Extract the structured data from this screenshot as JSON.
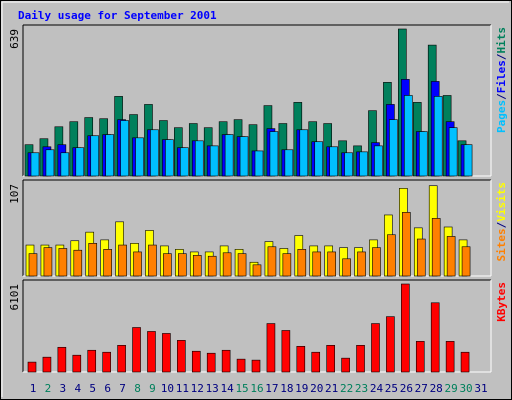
{
  "chart_data": {
    "type": "bar",
    "title": "Daily usage for September 2001",
    "categories": [
      "1",
      "2",
      "3",
      "4",
      "5",
      "6",
      "7",
      "8",
      "9",
      "10",
      "11",
      "12",
      "13",
      "14",
      "15",
      "16",
      "17",
      "18",
      "19",
      "20",
      "21",
      "22",
      "23",
      "24",
      "25",
      "26",
      "27",
      "28",
      "29",
      "30",
      "31"
    ],
    "category_colors": [
      "#000080",
      "#00805c",
      "#000080",
      "#000080",
      "#000080",
      "#000080",
      "#000080",
      "#00805c",
      "#00805c",
      "#000080",
      "#000080",
      "#000080",
      "#000080",
      "#000080",
      "#00805c",
      "#00805c",
      "#000080",
      "#000080",
      "#000080",
      "#000080",
      "#000080",
      "#00805c",
      "#00805c",
      "#000080",
      "#000080",
      "#000080",
      "#000080",
      "#000080",
      "#00805c",
      "#00805c",
      "#000080"
    ],
    "legend_separator": "/",
    "panels": [
      {
        "ylim": [
          0,
          639
        ],
        "yticks": [
          639
        ],
        "series": [
          {
            "name": "Hits",
            "color": "#00805c",
            "values": [
              136,
              162,
              214,
              236,
              254,
              249,
              346,
              267,
              311,
              241,
              210,
              228,
              210,
              236,
              245,
              223,
              306,
              228,
              320,
              236,
              228,
              153,
              131,
              284,
              407,
              639,
              320,
              569,
              350,
              153,
              0
            ]
          },
          {
            "name": "Files",
            "color": "#0000ff",
            "values": [
              101,
              127,
              136,
              123,
              175,
              180,
              245,
              166,
              201,
              158,
              123,
              153,
              131,
              180,
              171,
              109,
              206,
              114,
              201,
              149,
              127,
              101,
              105,
              145,
              311,
              420,
              193,
              411,
              236,
              136,
              0
            ]
          },
          {
            "name": "Pages",
            "color": "#00c0ff",
            "values": [
              101,
              114,
              101,
              123,
              175,
              180,
              241,
              166,
              201,
              158,
              123,
              153,
              131,
              180,
              171,
              109,
              193,
              114,
              201,
              149,
              127,
              101,
              105,
              131,
              245,
              350,
              193,
              346,
              210,
              136,
              0
            ]
          }
        ]
      },
      {
        "ylim": [
          0,
          107
        ],
        "yticks": [
          107
        ],
        "series": [
          {
            "name": "Visits",
            "color": "#ffff00",
            "values": [
              36,
              36,
              36,
              41,
              51,
              42,
              63,
              38,
              53,
              35,
              31,
              28,
              28,
              35,
              31,
              16,
              40,
              32,
              47,
              35,
              35,
              33,
              33,
              42,
              71,
              102,
              56,
              105,
              57,
              42,
              0
            ]
          },
          {
            "name": "Sites",
            "color": "#ff8000",
            "values": [
              26,
              33,
              32,
              30,
              38,
              31,
              36,
              28,
              36,
              26,
              26,
              24,
              23,
              27,
              26,
              13,
              34,
              26,
              31,
              28,
              28,
              20,
              28,
              33,
              48,
              74,
              43,
              67,
              46,
              34,
              0
            ]
          }
        ]
      },
      {
        "ylim": [
          0,
          6101
        ],
        "yticks": [
          6101
        ],
        "series": [
          {
            "name": "KBytes",
            "color": "#ff0000",
            "values": [
              686,
              1028,
              1714,
              1165,
              1508,
              1371,
              1851,
              3085,
              2811,
              2673,
              2194,
              1440,
              1302,
              1508,
              891,
              823,
              3359,
              2879,
              1782,
              1371,
              1851,
              960,
              1851,
              3359,
              3839,
              6101,
              2125,
              4799,
              2125,
              1371,
              0
            ]
          }
        ]
      }
    ]
  }
}
